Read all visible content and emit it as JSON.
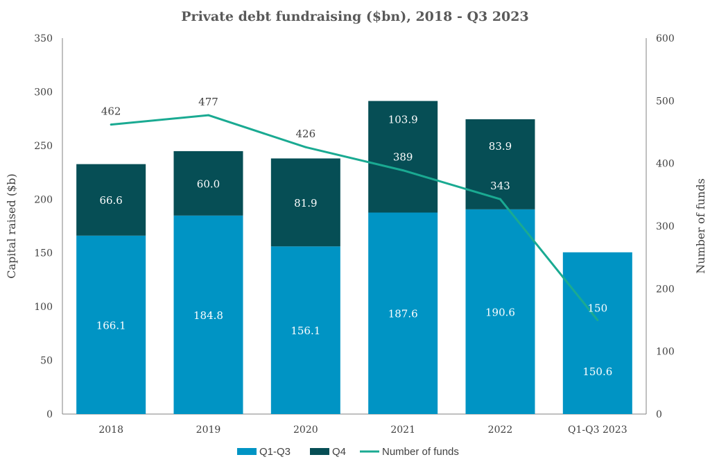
{
  "colors": {
    "q1q3": "#0094C4",
    "q4": "#064E55",
    "line": "#1AAA92",
    "axis": "#808080",
    "text": "#404040"
  },
  "chart_data": {
    "type": "bar",
    "stacked": true,
    "title": "Private debt fundraising ($bn), 2018 - Q3 2023",
    "categories": [
      "2018",
      "2019",
      "2020",
      "2021",
      "2022",
      "Q1-Q3 2023"
    ],
    "series": [
      {
        "name": "Q1-Q3",
        "values": [
          166.1,
          184.8,
          156.1,
          187.6,
          190.6,
          150.6
        ],
        "labels": [
          "166.1",
          "184.8",
          "156.1",
          "187.6",
          "190.6",
          "150.6"
        ]
      },
      {
        "name": "Q4",
        "values": [
          66.6,
          60.0,
          81.9,
          103.9,
          83.9,
          null
        ],
        "labels": [
          "66.6",
          "60.0",
          "81.9",
          "103.9",
          "83.9",
          ""
        ]
      }
    ],
    "line_series": {
      "name": "Number of funds",
      "type": "line",
      "axis": "secondary",
      "values": [
        462,
        477,
        426,
        389,
        343,
        150
      ],
      "labels": [
        "462",
        "477",
        "426",
        "389",
        "343",
        "150"
      ]
    },
    "ylabel": "Capital raised ($b)",
    "y2label": "Number of funds",
    "ylim": [
      0,
      350
    ],
    "y2lim": [
      0,
      600
    ],
    "yticks": [
      "0",
      "50",
      "100",
      "150",
      "200",
      "250",
      "300",
      "350"
    ],
    "y2ticks": [
      "0",
      "100",
      "200",
      "300",
      "400",
      "500",
      "600"
    ],
    "grid": false,
    "legend_position": "bottom"
  }
}
